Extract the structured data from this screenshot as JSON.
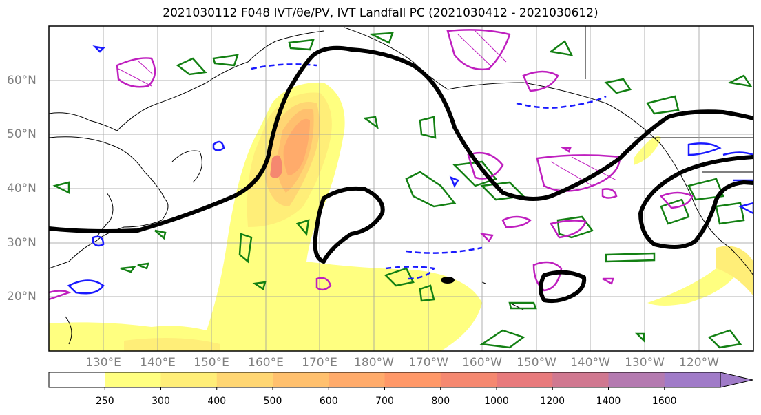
{
  "title": "2021030112 F048 IVT/θe/PV, IVT Landfall PC (2021030412 - 2021030612)",
  "latitude_labels": [
    "60°N",
    "50°N",
    "40°N",
    "30°N",
    "20°N"
  ],
  "longitude_labels": [
    "130°E",
    "140°E",
    "150°E",
    "160°E",
    "170°E",
    "180°W",
    "170°W",
    "160°W",
    "150°W",
    "140°W",
    "130°W",
    "120°W"
  ],
  "colorbar": {
    "ticks": [
      "250",
      "300",
      "400",
      "500",
      "600",
      "700",
      "800",
      "1000",
      "1200",
      "1400",
      "1600"
    ],
    "colors": [
      "#ffff80",
      "#ffee78",
      "#ffd673",
      "#ffc06e",
      "#ffab6b",
      "#ff9868",
      "#f58870",
      "#e87a7c",
      "#d07890",
      "#b47ab0",
      "#a07bc8"
    ]
  },
  "legend_colors": {
    "ivt_contour": "#000000",
    "theta_e_green": "#138013",
    "pv_blue": "#1a1aff",
    "magenta": "#bf1fbf"
  }
}
